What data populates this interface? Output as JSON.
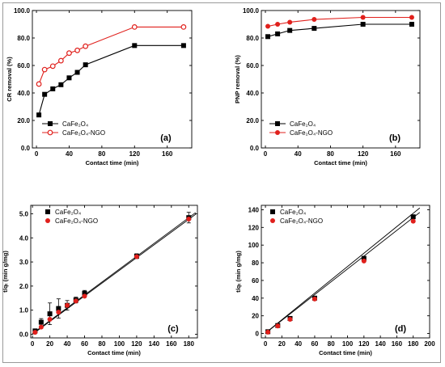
{
  "chart_data": [
    {
      "id": "a",
      "type": "line",
      "panel_label": "(a)",
      "xlabel": "Contact time (min)",
      "ylabel": "CR removal (%)",
      "xlim": [
        -5,
        190
      ],
      "ylim": [
        0,
        100
      ],
      "xticks": [
        0,
        40,
        80,
        120,
        160
      ],
      "yticks": [
        0,
        20,
        40,
        60,
        80,
        100
      ],
      "ytick_labels": [
        "0.0",
        "20.0",
        "40.0",
        "60.0",
        "80.0",
        "100.0"
      ],
      "legend_position": "bottom-center",
      "series": [
        {
          "name": "CaFe₂O₄",
          "color": "#000000",
          "marker": "square",
          "x": [
            3,
            10,
            20,
            30,
            40,
            50,
            60,
            120,
            180
          ],
          "y": [
            24,
            39,
            43,
            46,
            51,
            55,
            60.5,
            74.5,
            74.5
          ]
        },
        {
          "name": "CaFe₂O₄-NGO",
          "color": "#e0201c",
          "marker": "circle-open",
          "x": [
            3,
            10,
            20,
            30,
            40,
            50,
            60,
            120,
            180
          ],
          "y": [
            46.5,
            57,
            59.5,
            63.5,
            69,
            71,
            74,
            88,
            88
          ]
        }
      ]
    },
    {
      "id": "b",
      "type": "line",
      "panel_label": "(b)",
      "xlabel": "Contact time (min)",
      "ylabel": "PNP removal (%)",
      "xlim": [
        -5,
        190
      ],
      "ylim": [
        0,
        100
      ],
      "xticks": [
        0,
        40,
        80,
        120,
        160
      ],
      "yticks": [
        0,
        20,
        40,
        60,
        80,
        100
      ],
      "ytick_labels": [
        "0.0",
        "20.0",
        "40.0",
        "60.0",
        "80.0",
        "100.0"
      ],
      "legend_position": "bottom-left",
      "series": [
        {
          "name": "CaFe₂O₄",
          "color": "#000000",
          "marker": "square",
          "x": [
            3,
            15,
            30,
            60,
            120,
            180
          ],
          "y": [
            81,
            83,
            85.5,
            87,
            90,
            90
          ]
        },
        {
          "name": "CaFe₂O₄-NGO",
          "color": "#e0201c",
          "marker": "circle",
          "x": [
            3,
            15,
            30,
            60,
            120,
            180
          ],
          "y": [
            88.5,
            90,
            91.5,
            93.5,
            95,
            95
          ]
        }
      ]
    },
    {
      "id": "c",
      "type": "scatter",
      "panel_label": "(c)",
      "xlabel": "Contact time (min)",
      "ylabel": "t/qₜ (min g/mg)",
      "xlim": [
        -2,
        190
      ],
      "ylim": [
        -0.15,
        5.35
      ],
      "xticks": [
        0,
        20,
        40,
        60,
        80,
        100,
        120,
        140,
        160,
        180
      ],
      "yticks": [
        0,
        1,
        2,
        3,
        4,
        5
      ],
      "ytick_labels": [
        "0.0",
        "1.0",
        "2.0",
        "3.0",
        "4.0",
        "5.0"
      ],
      "legend_position": "top-left",
      "series": [
        {
          "name": "CaFe₂O₄",
          "color": "#000000",
          "marker": "square",
          "x": [
            3,
            10,
            20,
            30,
            40,
            50,
            60,
            120,
            180
          ],
          "y": [
            0.14,
            0.5,
            0.85,
            1.07,
            1.2,
            1.42,
            1.7,
            3.24,
            4.84
          ],
          "err": [
            0.08,
            0.15,
            0.45,
            0.4,
            0.2,
            0.12,
            0.12,
            0.1,
            0.22
          ]
        },
        {
          "name": "CaFe₂O₄-NGO",
          "color": "#e0201c",
          "marker": "circle",
          "x": [
            3,
            10,
            20,
            30,
            40,
            50,
            60,
            120,
            180
          ],
          "y": [
            0.08,
            0.3,
            0.62,
            0.92,
            1.2,
            1.38,
            1.58,
            3.22,
            4.78
          ]
        }
      ],
      "fits": [
        {
          "x": [
            0,
            188
          ],
          "y": [
            0.03,
            5.05
          ]
        },
        {
          "x": [
            0,
            188
          ],
          "y": [
            0.0,
            4.98
          ]
        }
      ]
    },
    {
      "id": "d",
      "type": "scatter",
      "panel_label": "(d)",
      "xlabel": "Contact time (min)",
      "ylabel": "t/qₜ (min g/mg)",
      "xlim": [
        -5,
        200
      ],
      "ylim": [
        -5,
        145
      ],
      "xticks": [
        0,
        20,
        40,
        60,
        80,
        100,
        120,
        140,
        160,
        180,
        200
      ],
      "yticks": [
        0,
        20,
        40,
        60,
        80,
        100,
        120,
        140
      ],
      "ytick_labels": [
        "0",
        "20",
        "40",
        "60",
        "80",
        "100",
        "120",
        "140"
      ],
      "legend_position": "top-left",
      "series": [
        {
          "name": "CaFe₂O₄",
          "color": "#000000",
          "marker": "square",
          "x": [
            3,
            15,
            30,
            60,
            120,
            180
          ],
          "y": [
            2,
            9,
            17,
            40,
            85,
            132
          ]
        },
        {
          "name": "CaFe₂O₄-NGO",
          "color": "#e0201c",
          "marker": "circle",
          "x": [
            3,
            15,
            30,
            60,
            120,
            180
          ],
          "y": [
            1.5,
            8.5,
            16,
            39,
            82,
            127
          ]
        }
      ],
      "fits": [
        {
          "x": [
            0,
            188
          ],
          "y": [
            0.5,
            142
          ]
        },
        {
          "x": [
            0,
            188
          ],
          "y": [
            0.3,
            137
          ]
        }
      ]
    }
  ]
}
